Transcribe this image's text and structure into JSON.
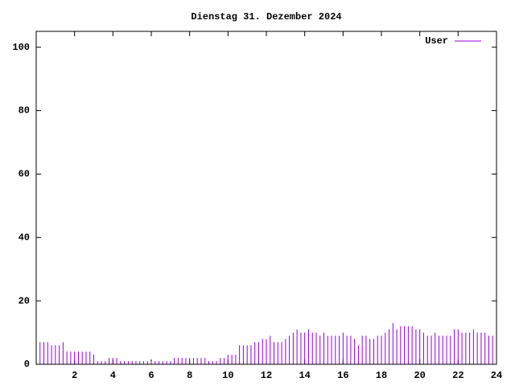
{
  "chart_data": {
    "type": "impulse",
    "title": "Dienstag 31. Dezember 2024",
    "x": [
      0,
      0.2,
      0.4,
      0.6,
      0.8,
      1.0,
      1.2,
      1.4,
      1.6,
      1.8,
      2.0,
      2.2,
      2.4,
      2.6,
      2.8,
      3.0,
      3.2,
      3.4,
      3.6,
      3.8,
      4.0,
      4.2,
      4.4,
      4.6,
      4.8,
      5.0,
      5.2,
      5.4,
      5.6,
      5.8,
      6.0,
      6.2,
      6.4,
      6.6,
      6.8,
      7.0,
      7.2,
      7.4,
      7.6,
      7.8,
      8.0,
      8.2,
      8.4,
      8.6,
      8.8,
      9.0,
      9.2,
      9.4,
      9.6,
      9.8,
      10.0,
      10.2,
      10.4,
      10.6,
      10.8,
      11.0,
      11.2,
      11.4,
      11.6,
      11.8,
      12.0,
      12.2,
      12.4,
      12.6,
      12.8,
      13.0,
      13.2,
      13.4,
      13.6,
      13.8,
      14.0,
      14.2,
      14.4,
      14.6,
      14.8,
      15.0,
      15.2,
      15.4,
      15.6,
      15.8,
      16.0,
      16.2,
      16.4,
      16.6,
      16.8,
      17.0,
      17.2,
      17.4,
      17.6,
      17.8,
      18.0,
      18.2,
      18.4,
      18.6,
      18.8,
      19.0,
      19.2,
      19.4,
      19.6,
      19.8,
      20.0,
      20.2,
      20.4,
      20.6,
      20.8,
      21.0,
      21.2,
      21.4,
      21.6,
      21.8,
      22.0,
      22.2,
      22.4,
      22.6,
      22.8,
      23.0,
      23.2,
      23.4,
      23.6,
      23.8,
      24.0
    ],
    "series": [
      {
        "name": "User",
        "color": "#9400d3",
        "values": [
          9,
          7,
          7,
          7,
          6,
          6,
          6,
          7,
          4,
          4,
          4,
          4,
          4,
          4,
          4,
          3,
          1,
          1,
          1,
          2,
          2,
          2,
          1,
          1,
          1,
          1,
          1,
          1,
          1,
          1,
          1,
          1,
          1,
          1,
          1,
          1,
          2,
          2,
          2,
          2,
          2,
          2,
          2,
          2,
          2,
          1,
          1,
          1,
          2,
          2,
          3,
          3,
          3,
          6,
          6,
          6,
          6,
          7,
          7,
          8,
          8,
          9,
          7,
          7,
          7,
          8,
          9,
          10,
          11,
          10,
          10,
          11,
          10,
          10,
          9,
          10,
          9,
          9,
          9,
          9,
          10,
          9,
          9,
          8,
          6,
          9,
          9,
          8,
          8,
          9,
          9,
          10,
          11,
          13,
          11,
          12,
          12,
          12,
          12,
          11,
          11,
          10,
          9,
          9,
          10,
          9,
          9,
          9,
          9,
          11,
          11,
          10,
          10,
          10,
          11,
          10,
          10,
          10,
          9,
          9,
          8
        ]
      }
    ],
    "xlim": [
      0,
      24
    ],
    "xticks": [
      2,
      4,
      6,
      8,
      10,
      12,
      14,
      16,
      18,
      20,
      22,
      24
    ],
    "ylim": [
      0,
      105
    ],
    "yticks": [
      0,
      20,
      40,
      60,
      80,
      100
    ],
    "legend": "top-right"
  }
}
